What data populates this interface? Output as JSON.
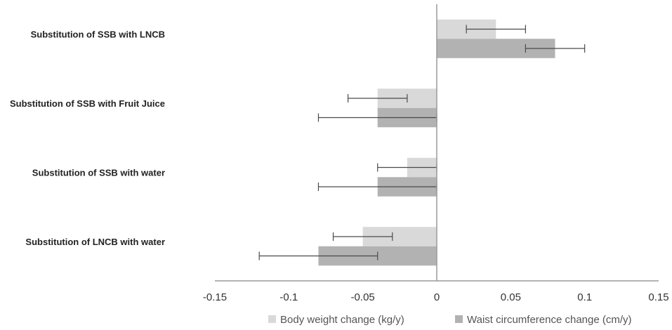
{
  "chart_data": {
    "type": "bar",
    "orientation": "horizontal",
    "categories": [
      "Substitution of SSB with LNCB",
      "Substitution of SSB with Fruit Juice",
      "Substitution of SSB with water",
      "Substitution of LNCB with water"
    ],
    "series": [
      {
        "name": "Body weight change (kg/y)",
        "color": "#d9d9d9",
        "values": [
          0.04,
          -0.04,
          -0.02,
          -0.05
        ],
        "error_low": [
          0.02,
          -0.06,
          -0.04,
          -0.07
        ],
        "error_high": [
          0.06,
          -0.02,
          0.0,
          -0.03
        ]
      },
      {
        "name": "Waist circumference change (cm/y)",
        "color": "#b2b2b2",
        "values": [
          0.08,
          -0.04,
          -0.04,
          -0.08
        ],
        "error_low": [
          0.06,
          -0.08,
          -0.08,
          -0.12
        ],
        "error_high": [
          0.1,
          0.0,
          0.0,
          -0.04
        ]
      }
    ],
    "xlim": [
      -0.15,
      0.15
    ],
    "xticks": [
      -0.15,
      -0.1,
      -0.05,
      0,
      0.05,
      0.1,
      0.15
    ],
    "xtick_labels": [
      "-0.15",
      "-0.1",
      "-0.05",
      "0",
      "0.05",
      "0.1",
      "0.15"
    ],
    "title": "",
    "xlabel": "",
    "ylabel": "",
    "legend_position": "bottom",
    "grid": false
  }
}
